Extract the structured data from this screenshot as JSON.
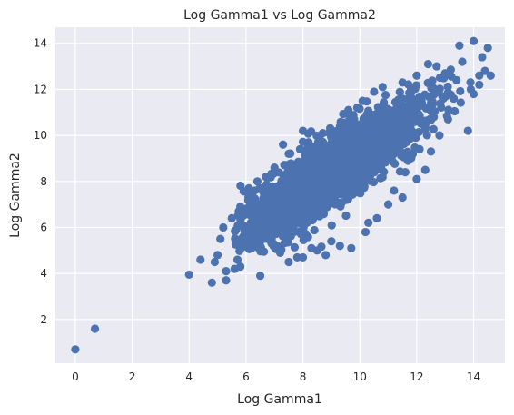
{
  "chart_data": {
    "type": "scatter",
    "title": "Log Gamma1 vs Log Gamma2",
    "xlabel": "Log Gamma1",
    "ylabel": "Log Gamma2",
    "xlim": [
      -0.7,
      15.1
    ],
    "ylim": [
      0.1,
      14.7
    ],
    "xticks": [
      0,
      2,
      4,
      6,
      8,
      10,
      12,
      14
    ],
    "yticks": [
      2,
      4,
      6,
      8,
      10,
      12,
      14
    ],
    "grid": true,
    "marker_color": "#4c72b0",
    "plot_background": "#eaeaf2",
    "points": [
      [
        0,
        0.7
      ],
      [
        0.69,
        1.6
      ],
      [
        4.0,
        3.95
      ],
      [
        4.8,
        3.6
      ],
      [
        4.4,
        4.6
      ],
      [
        4.9,
        4.5
      ],
      [
        5.3,
        3.7
      ],
      [
        5.0,
        4.8
      ],
      [
        5.1,
        5.5
      ],
      [
        5.6,
        4.2
      ],
      [
        5.7,
        4.6
      ],
      [
        5.3,
        4.1
      ],
      [
        5.8,
        4.3
      ],
      [
        6.5,
        3.9
      ],
      [
        7.5,
        4.5
      ],
      [
        7.8,
        4.7
      ],
      [
        8.0,
        4.7
      ],
      [
        8.3,
        5.1
      ],
      [
        8.8,
        4.8
      ],
      [
        9.7,
        5.1
      ],
      [
        9.3,
        5.2
      ],
      [
        10.2,
        5.8
      ],
      [
        10.6,
        6.4
      ],
      [
        11.0,
        7.0
      ],
      [
        11.5,
        7.3
      ],
      [
        12.0,
        8.1
      ],
      [
        12.3,
        8.5
      ],
      [
        12.5,
        9.3
      ],
      [
        12.8,
        10.0
      ],
      [
        13.1,
        10.7
      ],
      [
        13.8,
        10.2
      ],
      [
        14.0,
        11.8
      ],
      [
        14.2,
        12.6
      ],
      [
        14.4,
        12.8
      ],
      [
        14.5,
        13.8
      ],
      [
        14.3,
        13.4
      ],
      [
        14.0,
        14.1
      ],
      [
        13.6,
        13.2
      ],
      [
        13.5,
        13.9
      ],
      [
        13.0,
        12.7
      ],
      [
        12.7,
        13.0
      ],
      [
        12.4,
        13.1
      ],
      [
        12.0,
        12.6
      ],
      [
        11.5,
        12.3
      ],
      [
        10.8,
        12.1
      ],
      [
        10.5,
        11.9
      ],
      [
        9.8,
        10.7
      ],
      [
        9.3,
        10.4
      ],
      [
        8.7,
        10.1
      ],
      [
        8.2,
        9.7
      ],
      [
        7.9,
        9.4
      ],
      [
        7.5,
        9.2
      ],
      [
        7.0,
        8.6
      ],
      [
        6.7,
        8.2
      ],
      [
        6.1,
        7.7
      ],
      [
        6.3,
        7.6
      ],
      [
        5.8,
        6.9
      ],
      [
        5.5,
        6.4
      ],
      [
        5.2,
        6.0
      ],
      [
        6.0,
        6.8
      ],
      [
        14.2,
        12.2
      ],
      [
        14.6,
        12.6
      ],
      [
        13.9,
        12.0
      ],
      [
        13.3,
        11.6
      ],
      [
        11.2,
        7.6
      ],
      [
        12.1,
        9.4
      ],
      [
        10.3,
        6.2
      ],
      [
        9.0,
        5.4
      ],
      [
        8.5,
        5.0
      ],
      [
        7.2,
        4.9
      ],
      [
        6.9,
        5.3
      ],
      [
        6.6,
        5.5
      ],
      [
        6.2,
        5.1
      ],
      [
        5.9,
        5.6
      ],
      [
        12.9,
        11.7
      ],
      [
        12.6,
        10.8
      ],
      [
        13.4,
        12.4
      ],
      [
        11.8,
        12.0
      ],
      [
        10.1,
        11.5
      ],
      [
        9.6,
        11.1
      ],
      [
        8.0,
        10.2
      ],
      [
        7.3,
        9.6
      ],
      [
        6.4,
        8.0
      ],
      [
        11.6,
        8.4
      ]
    ]
  }
}
